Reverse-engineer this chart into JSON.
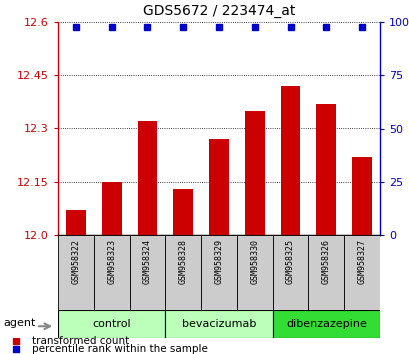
{
  "title": "GDS5672 / 223474_at",
  "samples": [
    "GSM958322",
    "GSM958323",
    "GSM958324",
    "GSM958328",
    "GSM958329",
    "GSM958330",
    "GSM958325",
    "GSM958326",
    "GSM958327"
  ],
  "bar_values": [
    12.07,
    12.15,
    12.32,
    12.13,
    12.27,
    12.35,
    12.42,
    12.37,
    12.22
  ],
  "percentile_values": [
    100,
    100,
    100,
    100,
    100,
    100,
    100,
    100,
    100
  ],
  "bar_color": "#cc0000",
  "percentile_color": "#0000cc",
  "ylim_left": [
    12.0,
    12.6
  ],
  "ylim_right": [
    0,
    100
  ],
  "yticks_left": [
    12.0,
    12.15,
    12.3,
    12.45,
    12.6
  ],
  "yticks_right": [
    0,
    25,
    50,
    75,
    100
  ],
  "groups": [
    {
      "label": "control",
      "start": 0,
      "end": 3,
      "color": "#bbffbb"
    },
    {
      "label": "bevacizumab",
      "start": 3,
      "end": 6,
      "color": "#bbffbb"
    },
    {
      "label": "dibenzazepine",
      "start": 6,
      "end": 9,
      "color": "#33dd33"
    }
  ],
  "sample_box_color": "#cccccc",
  "legend_items": [
    {
      "label": "transformed count",
      "color": "#cc0000"
    },
    {
      "label": "percentile rank within the sample",
      "color": "#0000cc"
    }
  ],
  "agent_label": "agent",
  "title_color": "#000000",
  "left_axis_color": "#cc0000",
  "right_axis_color": "#0000cc"
}
